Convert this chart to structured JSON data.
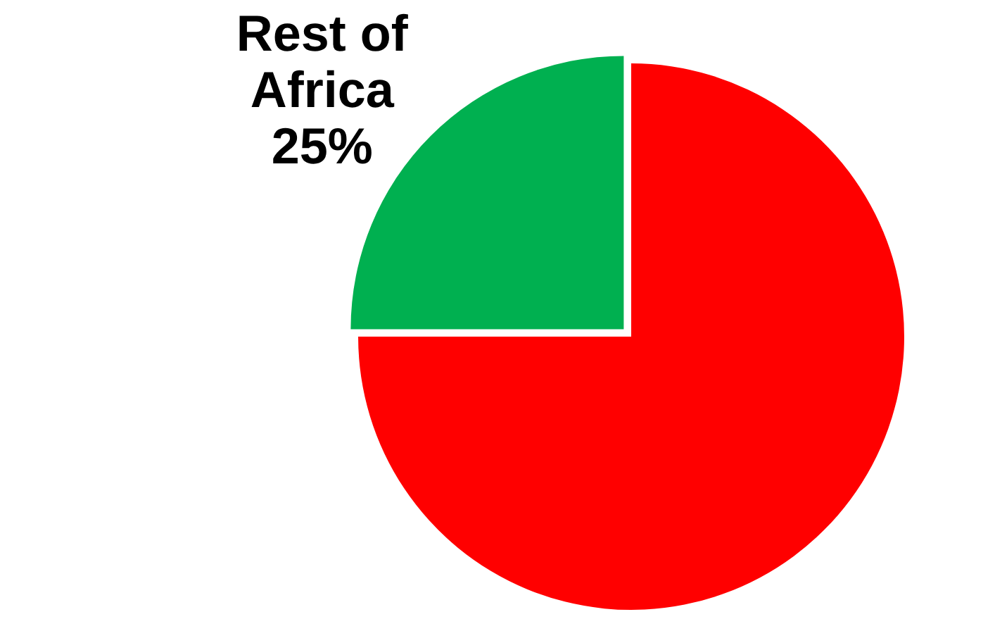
{
  "chart_data": {
    "type": "pie",
    "categories": [
      null,
      "Rest of Africa"
    ],
    "values": [
      75,
      25
    ],
    "colors": [
      "#ff0000",
      "#00b050"
    ],
    "value_labels": [
      null,
      "25%"
    ],
    "legend": false
  }
}
